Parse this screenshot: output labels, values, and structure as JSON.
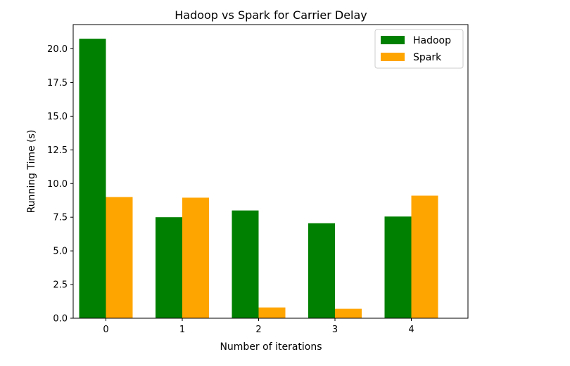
{
  "chart_data": {
    "type": "bar",
    "title": "Hadoop vs Spark for Carrier Delay",
    "xlabel": "Number of iterations",
    "ylabel": "Running Time (s)",
    "categories": [
      "0",
      "1",
      "2",
      "3",
      "4"
    ],
    "series": [
      {
        "name": "Hadoop",
        "color": "#008000",
        "values": [
          20.75,
          7.5,
          8.0,
          7.05,
          7.55
        ]
      },
      {
        "name": "Spark",
        "color": "#ffa500",
        "values": [
          9.0,
          8.95,
          0.8,
          0.7,
          9.1
        ]
      }
    ],
    "ylim": [
      0,
      21.8
    ],
    "yticks": [
      "0.0",
      "2.5",
      "5.0",
      "7.5",
      "10.0",
      "12.5",
      "15.0",
      "17.5",
      "20.0"
    ],
    "grid": false,
    "legend": "top-right"
  }
}
